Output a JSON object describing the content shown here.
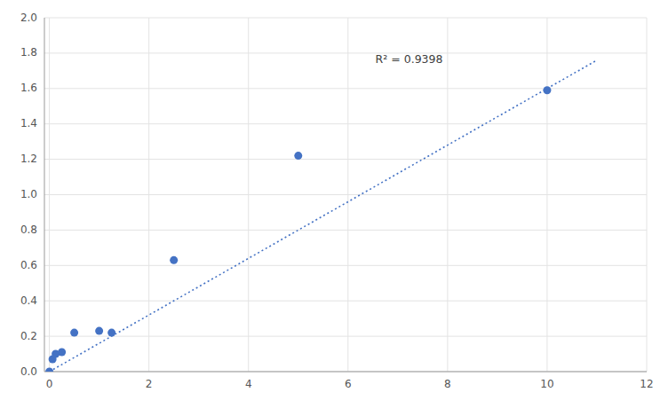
{
  "chart_data": {
    "type": "scatter",
    "series": [
      {
        "type": "scatter",
        "color": "#4472C4",
        "marker": "circle",
        "x": [
          0,
          0.063,
          0.125,
          0.25,
          0.5,
          1.0,
          1.25,
          2.5,
          5.0,
          10.0
        ],
        "values": [
          0.0,
          0.07,
          0.1,
          0.11,
          0.22,
          0.23,
          0.22,
          0.63,
          1.22,
          1.59
        ]
      },
      {
        "type": "line",
        "color": "#4472C4",
        "line_style": "dotted",
        "x": [
          0,
          11
        ],
        "values": [
          0.0,
          1.76
        ]
      }
    ],
    "annotations": [
      {
        "text": "R² = 0.9398",
        "x": 6.55,
        "y": 1.79
      }
    ],
    "xlim": [
      -0.1,
      12
    ],
    "ylim": [
      0,
      2
    ],
    "xticks": [
      0,
      2,
      4,
      6,
      8,
      10,
      12
    ],
    "yticks": [
      {
        "value": 0,
        "label": "0.0"
      },
      0.2,
      0.4,
      0.6,
      0.8,
      {
        "value": 1.0,
        "label": "1.0"
      },
      1.2,
      1.4,
      1.6,
      1.8,
      {
        "value": 2.0,
        "label": "2.0"
      }
    ],
    "grid": true
  }
}
